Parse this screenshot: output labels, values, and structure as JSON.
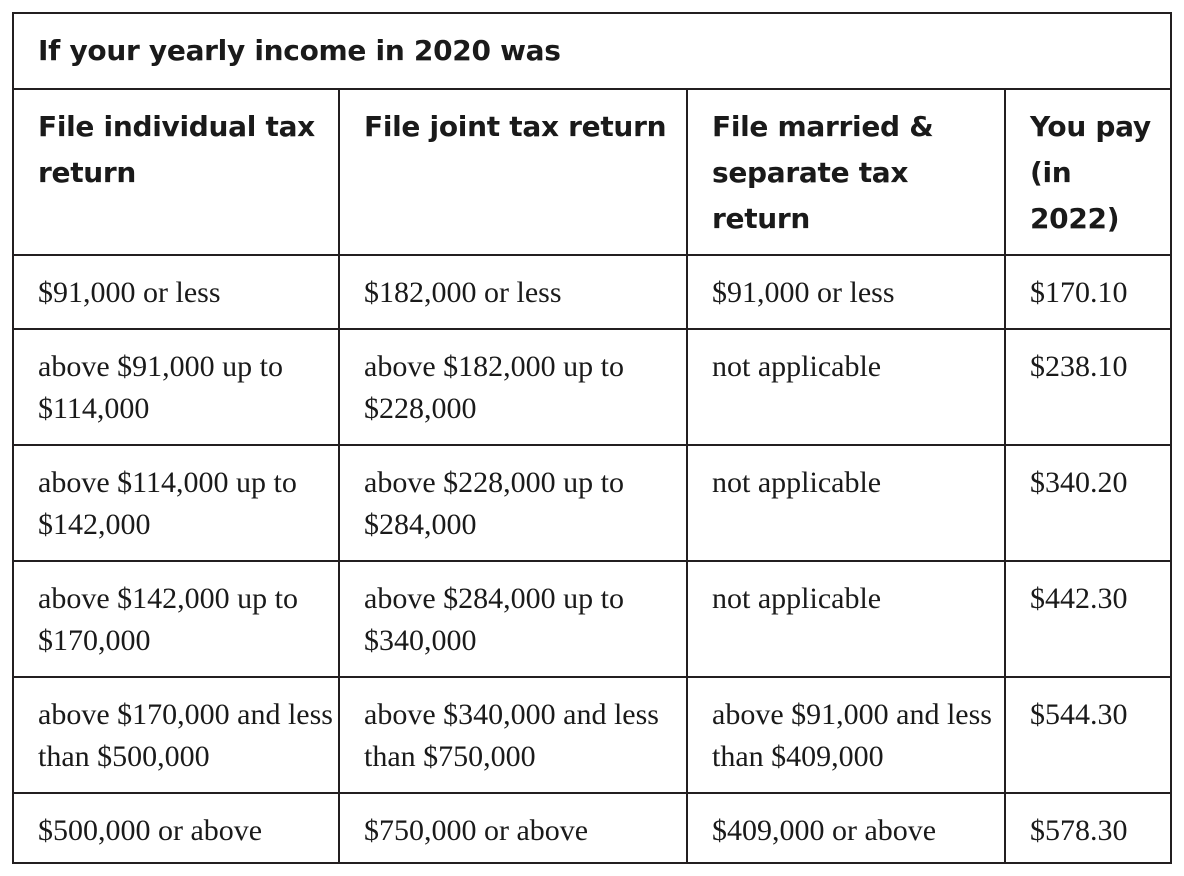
{
  "caption": "If your yearly income in 2020 was",
  "headers": [
    "File individual tax return",
    "File joint tax return",
    "File married & separate tax return",
    "You pay (in 2022)"
  ],
  "rows": [
    [
      "$91,000 or less",
      "$182,000 or less",
      "$91,000 or less",
      "$170.10"
    ],
    [
      "above $91,000 up to $114,000",
      "above $182,000 up to $228,000",
      "not applicable",
      "$238.10"
    ],
    [
      "above $114,000 up to $142,000",
      "above $228,000 up to $284,000",
      "not applicable",
      "$340.20"
    ],
    [
      "above $142,000 up to $170,000",
      "above $284,000 up to $340,000",
      "not applicable",
      "$442.30"
    ],
    [
      "above $170,000 and less than $500,000",
      "above $340,000 and less than $750,000",
      "above $91,000 and less than $409,000",
      "$544.30"
    ],
    [
      "$500,000 or above",
      "$750,000 or above",
      "$409,000 or above",
      "$578.30"
    ]
  ]
}
